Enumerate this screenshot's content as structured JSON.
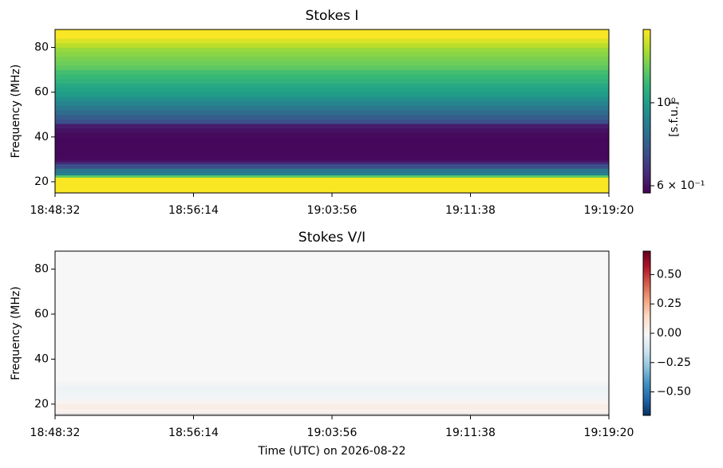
{
  "chart_data": [
    {
      "type": "heatmap",
      "title": "Stokes I",
      "ylabel": "Frequency (MHz)",
      "xlim": [
        "18:48:32",
        "19:19:20"
      ],
      "xticks": [
        "18:48:32",
        "18:56:14",
        "19:03:56",
        "19:11:38",
        "19:19:20"
      ],
      "ylim": [
        15,
        88
      ],
      "yticks": [
        20,
        40,
        60,
        80
      ],
      "y_edges": [
        15,
        16,
        18,
        20,
        22,
        23,
        24,
        26,
        28,
        29,
        30,
        32,
        34,
        36,
        38,
        40,
        42,
        44,
        46,
        48,
        50,
        52,
        54,
        56,
        58,
        60,
        62,
        64,
        66,
        68,
        70,
        72,
        74,
        76,
        78,
        80,
        82,
        84,
        88
      ],
      "values": [
        1.56,
        1.56,
        1.56,
        1.56,
        1.215,
        0.9,
        0.856,
        0.737,
        0.647,
        0.603,
        0.586,
        0.586,
        0.586,
        0.586,
        0.586,
        0.59,
        0.603,
        0.62,
        0.737,
        0.775,
        0.815,
        0.856,
        0.9,
        0.946,
        0.995,
        1.02,
        1.046,
        1.1,
        1.13,
        1.156,
        1.215,
        1.25,
        1.277,
        1.31,
        1.343,
        1.41,
        1.485,
        1.56
      ],
      "colorscale": "log",
      "clim": [
        0.574,
        1.57
      ],
      "colormap": [
        "#440154",
        "#482878",
        "#3e4989",
        "#31688e",
        "#26828e",
        "#1f9e89",
        "#35b779",
        "#6ece58",
        "#b5de2b",
        "#fde725"
      ],
      "cticks": [
        {
          "value": 1,
          "label": "10⁰"
        },
        {
          "value": 0.6,
          "label": "6 × 10⁻¹"
        }
      ],
      "clabel": "[s.f.u.]"
    },
    {
      "type": "heatmap",
      "title": "Stokes V/I",
      "ylabel": "Frequency (MHz)",
      "xlabel": "Time (UTC) on 2026-08-22",
      "xlim": [
        "18:48:32",
        "19:19:20"
      ],
      "xticks": [
        "18:48:32",
        "18:56:14",
        "19:03:56",
        "19:11:38",
        "19:19:20"
      ],
      "ylim": [
        15,
        88
      ],
      "yticks": [
        20,
        40,
        60,
        80
      ],
      "y_edges": [
        15,
        16,
        18,
        20,
        22,
        24,
        26,
        28,
        30,
        88
      ],
      "values": [
        null,
        0.03,
        0.05,
        0.02,
        -0.02,
        -0.03,
        -0.04,
        -0.02,
        0
      ],
      "colorscale": "linear",
      "clim": [
        -0.7,
        0.7
      ],
      "colormap": [
        "#053061",
        "#2166ac",
        "#4393c3",
        "#92c5de",
        "#d1e5f0",
        "#f7f7f7",
        "#fddbc7",
        "#f4a582",
        "#d6604d",
        "#b2182b",
        "#67001f"
      ],
      "cticks": [
        {
          "value": 0.5,
          "label": "0.50"
        },
        {
          "value": 0.25,
          "label": "0.25"
        },
        {
          "value": 0,
          "label": "0.00"
        },
        {
          "value": -0.25,
          "label": "−0.25"
        },
        {
          "value": -0.5,
          "label": "−0.50"
        }
      ]
    }
  ]
}
